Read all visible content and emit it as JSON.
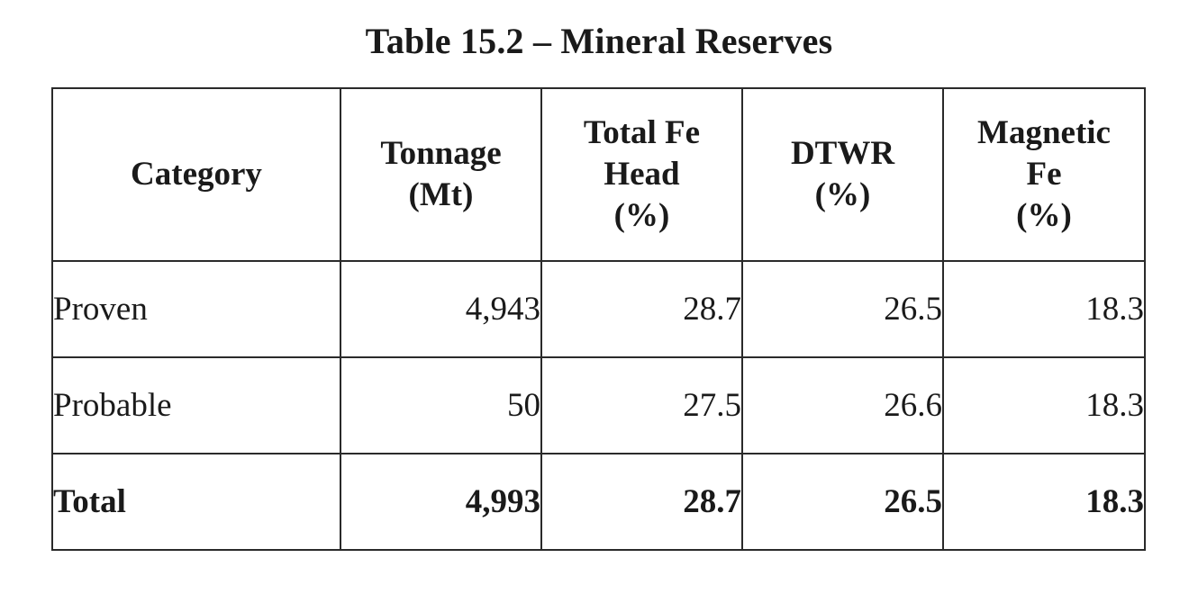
{
  "title": "Table 15.2 – Mineral Reserves",
  "table": {
    "headers": [
      [
        "Category"
      ],
      [
        "Tonnage",
        "(Mt)"
      ],
      [
        "Total Fe",
        "Head",
        "(%)"
      ],
      [
        "DTWR",
        "(%)"
      ],
      [
        "Magnetic",
        "Fe",
        "(%)"
      ]
    ],
    "rows": [
      [
        "Proven",
        "4,943",
        "28.7",
        "26.5",
        "18.3"
      ],
      [
        "Probable",
        "50",
        "27.5",
        "26.6",
        "18.3"
      ],
      [
        "Total",
        "4,993",
        "28.7",
        "26.5",
        "18.3"
      ]
    ]
  }
}
